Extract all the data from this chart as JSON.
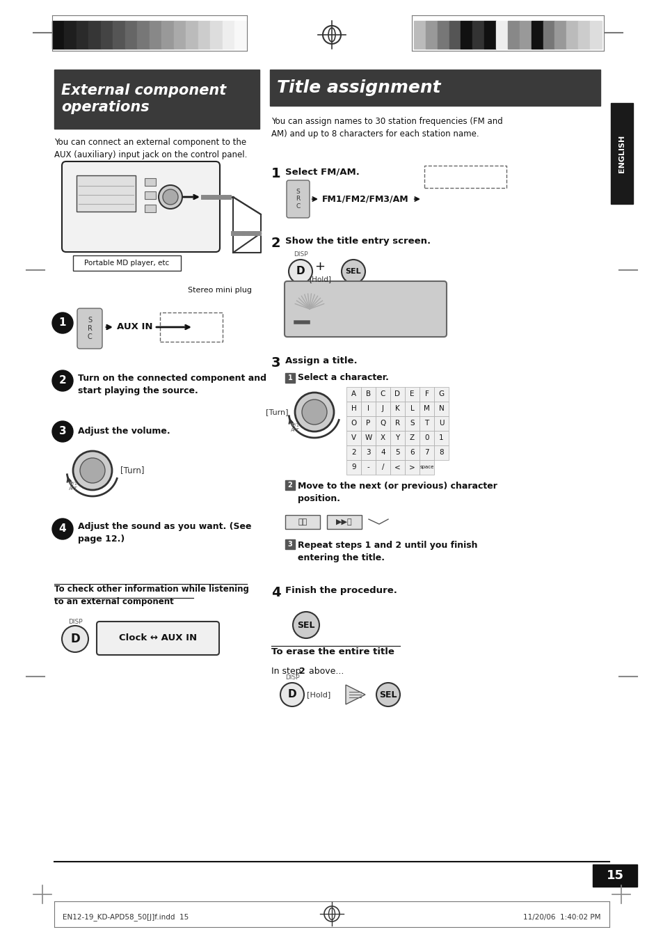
{
  "page_bg": "#ffffff",
  "page_width": 9.54,
  "page_height": 13.52,
  "footer_left": "EN12-19_KD-APD58_50[J]f.indd  15",
  "footer_right": "11/20/06  1:40:02 PM",
  "page_number": "15",
  "title_bg": "#3a3a3a",
  "title_fg": "#ffffff",
  "english_tab_bg": "#1a1a1a",
  "english_tab_fg": "#ffffff",
  "left_bar_colors": [
    "#111111",
    "#1e1e1e",
    "#2a2a2a",
    "#363636",
    "#444444",
    "#555555",
    "#666666",
    "#777777",
    "#888888",
    "#999999",
    "#aaaaaa",
    "#bbbbbb",
    "#cccccc",
    "#dddddd",
    "#eeeeee",
    "#f8f8f8"
  ],
  "right_bar_colors": [
    "#bbbbbb",
    "#999999",
    "#777777",
    "#555555",
    "#111111",
    "#333333",
    "#111111",
    "#eeeeee",
    "#888888",
    "#999999",
    "#111111",
    "#777777",
    "#999999",
    "#bbbbbb",
    "#cccccc",
    "#dddddd"
  ]
}
